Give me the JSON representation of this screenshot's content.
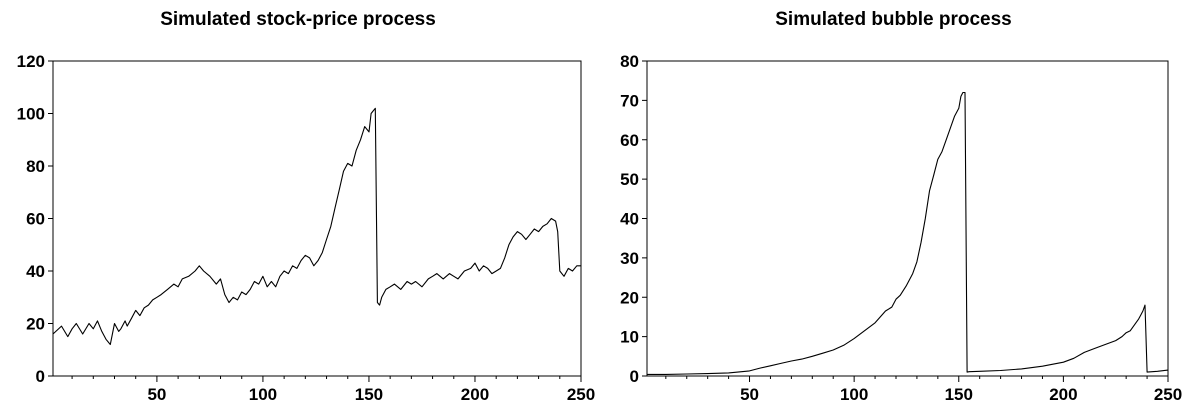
{
  "chart_data": [
    {
      "type": "line",
      "title": "Simulated stock-price process",
      "xlabel": "",
      "ylabel": "",
      "xlim": [
        1,
        250
      ],
      "ylim": [
        0,
        120
      ],
      "yticks": [
        0,
        20,
        40,
        60,
        80,
        100,
        120
      ],
      "xtick_labels": [
        50,
        100,
        150,
        200,
        250
      ],
      "grid": false,
      "legend": "none",
      "line_color": "#000000",
      "series": [
        {
          "x": [
            1,
            5,
            8,
            10,
            12,
            15,
            18,
            20,
            22,
            24,
            26,
            28,
            30,
            32,
            33,
            35,
            36,
            38,
            40,
            42,
            44,
            46,
            48,
            50,
            52,
            55,
            58,
            60,
            62,
            65,
            68,
            70,
            72,
            75,
            78,
            80,
            82,
            84,
            86,
            88,
            90,
            92,
            94,
            96,
            98,
            100,
            102,
            104,
            106,
            108,
            110,
            112,
            114,
            116,
            118,
            120,
            122,
            124,
            126,
            128,
            130,
            132,
            134,
            136,
            138,
            140,
            142,
            144,
            146,
            148,
            150,
            151,
            152,
            153,
            154,
            155,
            156,
            158,
            160,
            162,
            165,
            168,
            170,
            172,
            175,
            178,
            180,
            182,
            185,
            188,
            190,
            192,
            195,
            198,
            200,
            202,
            204,
            206,
            208,
            210,
            212,
            214,
            216,
            218,
            220,
            222,
            224,
            226,
            228,
            230,
            232,
            234,
            236,
            238,
            239,
            240,
            242,
            244,
            246,
            248,
            250
          ],
          "y": [
            16,
            19,
            15,
            18,
            20,
            16,
            20,
            18,
            21,
            17,
            14,
            12,
            20,
            17,
            18,
            21,
            19,
            22,
            25,
            23,
            26,
            27,
            29,
            30,
            31,
            33,
            35,
            34,
            37,
            38,
            40,
            42,
            40,
            38,
            35,
            37,
            31,
            28,
            30,
            29,
            32,
            31,
            33,
            36,
            35,
            38,
            34,
            36,
            34,
            38,
            40,
            39,
            42,
            41,
            44,
            46,
            45,
            42,
            44,
            47,
            52,
            57,
            64,
            71,
            78,
            81,
            80,
            86,
            90,
            95,
            93,
            100,
            101,
            102,
            28,
            27,
            30,
            33,
            34,
            35,
            33,
            36,
            35,
            36,
            34,
            37,
            38,
            39,
            37,
            39,
            38,
            37,
            40,
            41,
            43,
            40,
            42,
            41,
            39,
            40,
            41,
            45,
            50,
            53,
            55,
            54,
            52,
            54,
            56,
            55,
            57,
            58,
            60,
            59,
            55,
            40,
            38,
            41,
            40,
            42,
            42
          ]
        }
      ]
    },
    {
      "type": "line",
      "title": "Simulated bubble process",
      "xlabel": "",
      "ylabel": "",
      "xlim": [
        1,
        250
      ],
      "ylim": [
        0,
        80
      ],
      "yticks": [
        0,
        10,
        20,
        30,
        40,
        50,
        60,
        70,
        80
      ],
      "xtick_labels": [
        50,
        100,
        150,
        200,
        250
      ],
      "grid": false,
      "legend": "none",
      "line_color": "#000000",
      "series": [
        {
          "x": [
            1,
            10,
            20,
            30,
            40,
            50,
            55,
            60,
            65,
            70,
            75,
            80,
            85,
            90,
            95,
            100,
            105,
            110,
            115,
            118,
            120,
            122,
            125,
            128,
            130,
            132,
            134,
            136,
            138,
            140,
            142,
            144,
            146,
            148,
            150,
            151,
            152,
            153,
            154,
            155,
            160,
            170,
            180,
            190,
            195,
            200,
            205,
            210,
            215,
            220,
            225,
            228,
            230,
            232,
            234,
            236,
            237,
            238,
            239,
            240,
            245,
            250
          ],
          "y": [
            0.4,
            0.4,
            0.5,
            0.6,
            0.8,
            1.3,
            2.0,
            2.6,
            3.2,
            3.8,
            4.3,
            5.0,
            5.8,
            6.6,
            7.8,
            9.5,
            11.5,
            13.5,
            16.5,
            17.5,
            19.5,
            20.5,
            23,
            26,
            29,
            34,
            40,
            47,
            51,
            55,
            57,
            60,
            63,
            66,
            68,
            71,
            72,
            72,
            1.0,
            1.1,
            1.2,
            1.4,
            1.8,
            2.5,
            3.0,
            3.5,
            4.5,
            6.0,
            7.0,
            8.0,
            9.0,
            10.0,
            11.0,
            11.5,
            13.0,
            14.5,
            15.5,
            16.5,
            18,
            1.0,
            1.2,
            1.5
          ]
        }
      ]
    }
  ]
}
